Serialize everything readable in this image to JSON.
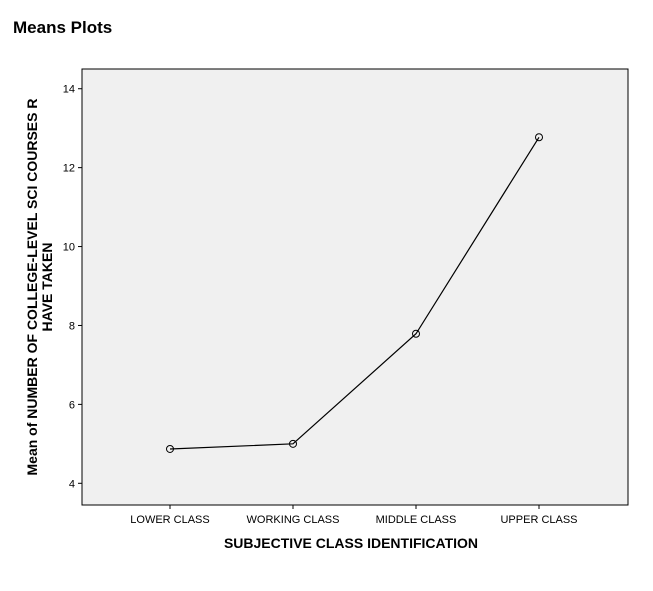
{
  "page": {
    "title": "Means Plots"
  },
  "chart_data": {
    "type": "line",
    "title": "",
    "xlabel": "SUBJECTIVE CLASS IDENTIFICATION",
    "ylabel_lines": [
      "Mean of NUMBER OF COLLEGE-LEVEL SCI COURSES R",
      "HAVE TAKEN"
    ],
    "categories": [
      "LOWER CLASS",
      "WORKING CLASS",
      "MIDDLE CLASS",
      "UPPER CLASS"
    ],
    "series": [
      {
        "values": [
          4.87,
          5.0,
          7.79,
          12.77
        ]
      }
    ],
    "ylim": [
      3.45,
      14.5
    ],
    "yticks": [
      4,
      6,
      8,
      10,
      12,
      14
    ],
    "marker": "open-circle",
    "grid": false,
    "colors": {
      "plot_background": "#f0f0f0",
      "line": "#000000",
      "frame": "#000000"
    }
  }
}
